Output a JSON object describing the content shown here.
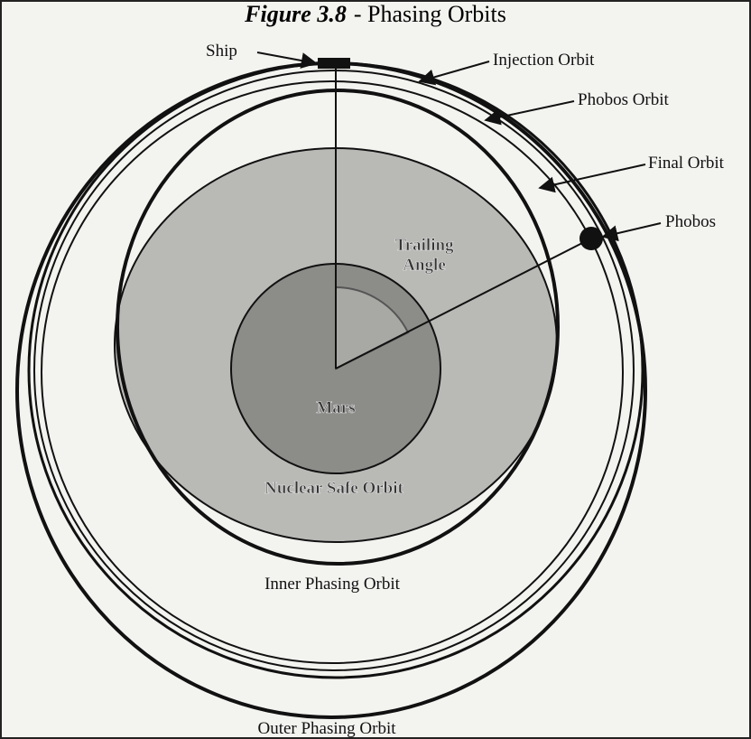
{
  "title": {
    "figure": "Figure 3.8",
    "text": "- Phasing Orbits"
  },
  "labels": {
    "ship": "Ship",
    "injection_orbit": "Injection Orbit",
    "phobos_orbit": "Phobos Orbit",
    "final_orbit": "Final Orbit",
    "phobos": "Phobos",
    "trailing_angle": [
      "Trailing",
      "Angle"
    ],
    "mars": "Mars",
    "nuclear_safe_orbit": "Nuclear Safe Orbit",
    "inner_phasing_orbit": "Inner Phasing Orbit",
    "outer_phasing_orbit": "Outer Phasing Orbit"
  }
}
